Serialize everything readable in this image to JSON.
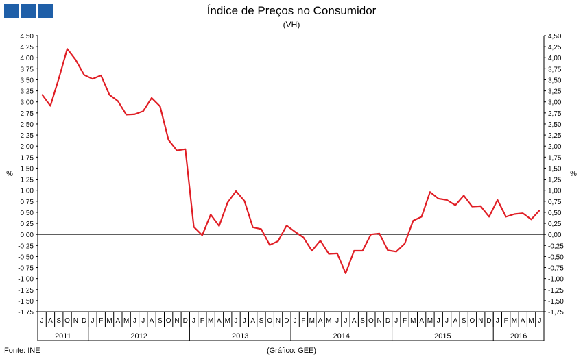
{
  "header": {
    "title": "Índice de Preços no Consumidor",
    "subtitle": "(VH)",
    "logo_colors": [
      "#1f5fa8",
      "#1f5fa8",
      "#1f5fa8"
    ],
    "logo_icon": "ine-logo-squares"
  },
  "footer": {
    "source": "Fonte: INE",
    "credit": "(Gráfico: GEE)"
  },
  "chart_data": {
    "type": "line",
    "ylabel_left": "%",
    "ylabel_right": "%",
    "ylim": [
      -1.75,
      4.5
    ],
    "ytick_step": 0.25,
    "ytick_labels": [
      "4,50",
      "4,25",
      "4,00",
      "3,75",
      "3,50",
      "3,25",
      "3,00",
      "2,75",
      "2,50",
      "2,25",
      "2,00",
      "1,75",
      "1,50",
      "1,25",
      "1,00",
      "0,75",
      "0,50",
      "0,25",
      "0,00",
      "-0,25",
      "-0,50",
      "-0,75",
      "-1,00",
      "-1,25",
      "-1,50",
      "-1,75"
    ],
    "months": [
      "J",
      "A",
      "S",
      "O",
      "N",
      "D",
      "J",
      "F",
      "M",
      "A",
      "M",
      "J",
      "J",
      "A",
      "S",
      "O",
      "N",
      "D",
      "J",
      "F",
      "M",
      "A",
      "M",
      "J",
      "J",
      "A",
      "S",
      "O",
      "N",
      "D",
      "J",
      "F",
      "M",
      "A",
      "M",
      "J",
      "J",
      "A",
      "S",
      "O",
      "N",
      "D",
      "J",
      "F",
      "M",
      "A",
      "M",
      "J",
      "J",
      "A",
      "S",
      "O",
      "N",
      "D",
      "J",
      "F",
      "M",
      "A",
      "M",
      "J"
    ],
    "years": [
      {
        "label": "2011",
        "start": 0,
        "count": 6
      },
      {
        "label": "2012",
        "start": 6,
        "count": 12
      },
      {
        "label": "2013",
        "start": 18,
        "count": 12
      },
      {
        "label": "2014",
        "start": 30,
        "count": 12
      },
      {
        "label": "2015",
        "start": 42,
        "count": 12
      },
      {
        "label": "2016",
        "start": 54,
        "count": 6
      }
    ],
    "series": [
      {
        "color": "#e01e25",
        "values": [
          3.17,
          2.91,
          3.53,
          4.2,
          3.95,
          3.61,
          3.52,
          3.6,
          3.16,
          3.02,
          2.71,
          2.72,
          2.79,
          3.09,
          2.9,
          2.14,
          1.9,
          1.93,
          0.17,
          -0.02,
          0.45,
          0.19,
          0.72,
          0.98,
          0.76,
          0.16,
          0.12,
          -0.24,
          -0.15,
          0.2,
          0.06,
          -0.07,
          -0.37,
          -0.14,
          -0.44,
          -0.43,
          -0.88,
          -0.37,
          -0.37,
          0.0,
          0.02,
          -0.36,
          -0.39,
          -0.21,
          0.31,
          0.4,
          0.96,
          0.81,
          0.78,
          0.66,
          0.88,
          0.63,
          0.64,
          0.4,
          0.78,
          0.4,
          0.46,
          0.48,
          0.34,
          0.55
        ]
      }
    ],
    "grid": false,
    "legend": "none"
  }
}
